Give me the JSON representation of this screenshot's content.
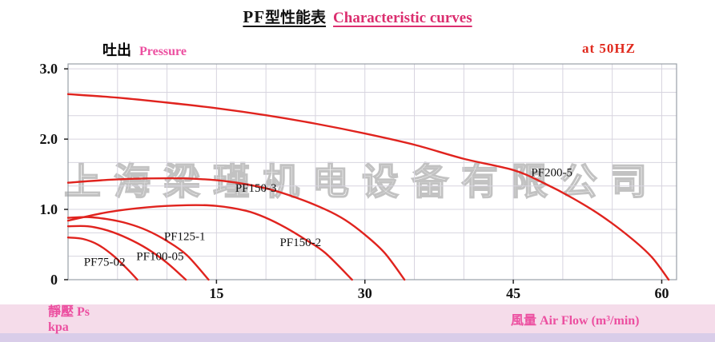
{
  "title": {
    "prefix": "PF",
    "zh": "型性能表",
    "en": "Characteristic curves"
  },
  "axis_header": {
    "y_zh": "吐出",
    "y_en": "Pressure",
    "freq": "at 50HZ"
  },
  "footer": {
    "ps_line1": "靜壓 Ps",
    "ps_line2": "kpa",
    "x_axis_label": "風量 Air Flow (m³/min)"
  },
  "watermark": "上海梁瑾机电设备有限公司",
  "colors": {
    "curve_red": "#e0231e",
    "title_pink": "#db2e6f",
    "accent_pink": "#ec4fa0",
    "freq_red": "#e02a1e",
    "grid": "#d7d4df",
    "plot_border": "#9aa0a8",
    "band_pink": "#f5dcea",
    "band_purple": "#d9cde9",
    "tick_text": "#111111",
    "watermark_gray": "#c2c2c2"
  },
  "chart_data": {
    "type": "line",
    "title": "PF型性能表 Characteristic curves",
    "xlabel": "風量 Air Flow (m³/min)",
    "ylabel": "吐出 Pressure 靜壓 Ps (kpa)",
    "frequency_note": "at 50HZ",
    "xlim": [
      0,
      61.5
    ],
    "ylim": [
      0,
      3.07
    ],
    "grid": {
      "x_step": 5,
      "x_max": 60,
      "y_step": 0.3333,
      "y_max": 3
    },
    "legend_position": "inline-labels",
    "line_color": "#e0231e",
    "x_ticks": [
      {
        "value": 15,
        "label": "15"
      },
      {
        "value": 30,
        "label": "30"
      },
      {
        "value": 45,
        "label": "45"
      },
      {
        "value": 60,
        "label": "60"
      }
    ],
    "y_ticks": [
      {
        "value": 3,
        "label": "3.0"
      },
      {
        "value": 2,
        "label": "2.0"
      },
      {
        "value": 1,
        "label": "1.0"
      },
      {
        "value": 0,
        "label": "0"
      }
    ],
    "series": [
      {
        "name": "PF75-02",
        "label_pos": [
          1.6,
          0.2
        ],
        "points": [
          [
            0,
            0.6
          ],
          [
            1.5,
            0.58
          ],
          [
            3,
            0.5
          ],
          [
            4.5,
            0.35
          ],
          [
            6,
            0.15
          ],
          [
            7,
            0
          ]
        ]
      },
      {
        "name": "PF100-05",
        "label_pos": [
          6.9,
          0.28
        ],
        "points": [
          [
            0,
            0.76
          ],
          [
            2,
            0.76
          ],
          [
            4,
            0.7
          ],
          [
            6,
            0.59
          ],
          [
            8,
            0.44
          ],
          [
            10,
            0.24
          ],
          [
            11.9,
            0
          ]
        ]
      },
      {
        "name": "PF125-1",
        "label_pos": [
          9.7,
          0.56
        ],
        "points": [
          [
            0,
            0.88
          ],
          [
            2,
            0.89
          ],
          [
            4,
            0.86
          ],
          [
            6,
            0.8
          ],
          [
            8,
            0.7
          ],
          [
            10,
            0.55
          ],
          [
            12,
            0.35
          ],
          [
            14.2,
            0
          ]
        ]
      },
      {
        "name": "PF150-2",
        "label_pos": [
          21.4,
          0.48
        ],
        "points": [
          [
            0,
            0.84
          ],
          [
            4,
            0.96
          ],
          [
            8,
            1.03
          ],
          [
            12,
            1.06
          ],
          [
            15,
            1.05
          ],
          [
            18,
            0.98
          ],
          [
            20,
            0.88
          ],
          [
            22,
            0.74
          ],
          [
            24,
            0.57
          ],
          [
            26,
            0.38
          ],
          [
            28.7,
            0
          ]
        ]
      },
      {
        "name": "PF150-3",
        "label_pos": [
          16.9,
          1.25
        ],
        "points": [
          [
            0,
            1.38
          ],
          [
            4,
            1.42
          ],
          [
            8,
            1.44
          ],
          [
            12,
            1.44
          ],
          [
            16,
            1.4
          ],
          [
            20,
            1.3
          ],
          [
            23,
            1.17
          ],
          [
            26,
            1.0
          ],
          [
            28,
            0.85
          ],
          [
            30,
            0.64
          ],
          [
            32,
            0.38
          ],
          [
            34,
            0
          ]
        ]
      },
      {
        "name": "PF200-5",
        "label_pos": [
          46.8,
          1.47
        ],
        "points": [
          [
            0,
            2.64
          ],
          [
            5,
            2.59
          ],
          [
            10,
            2.52
          ],
          [
            15,
            2.44
          ],
          [
            20,
            2.34
          ],
          [
            25,
            2.22
          ],
          [
            30,
            2.08
          ],
          [
            35,
            1.92
          ],
          [
            40,
            1.72
          ],
          [
            45,
            1.56
          ],
          [
            48,
            1.38
          ],
          [
            51,
            1.16
          ],
          [
            54,
            0.9
          ],
          [
            57,
            0.58
          ],
          [
            59,
            0.32
          ],
          [
            60.7,
            0
          ]
        ]
      }
    ]
  }
}
